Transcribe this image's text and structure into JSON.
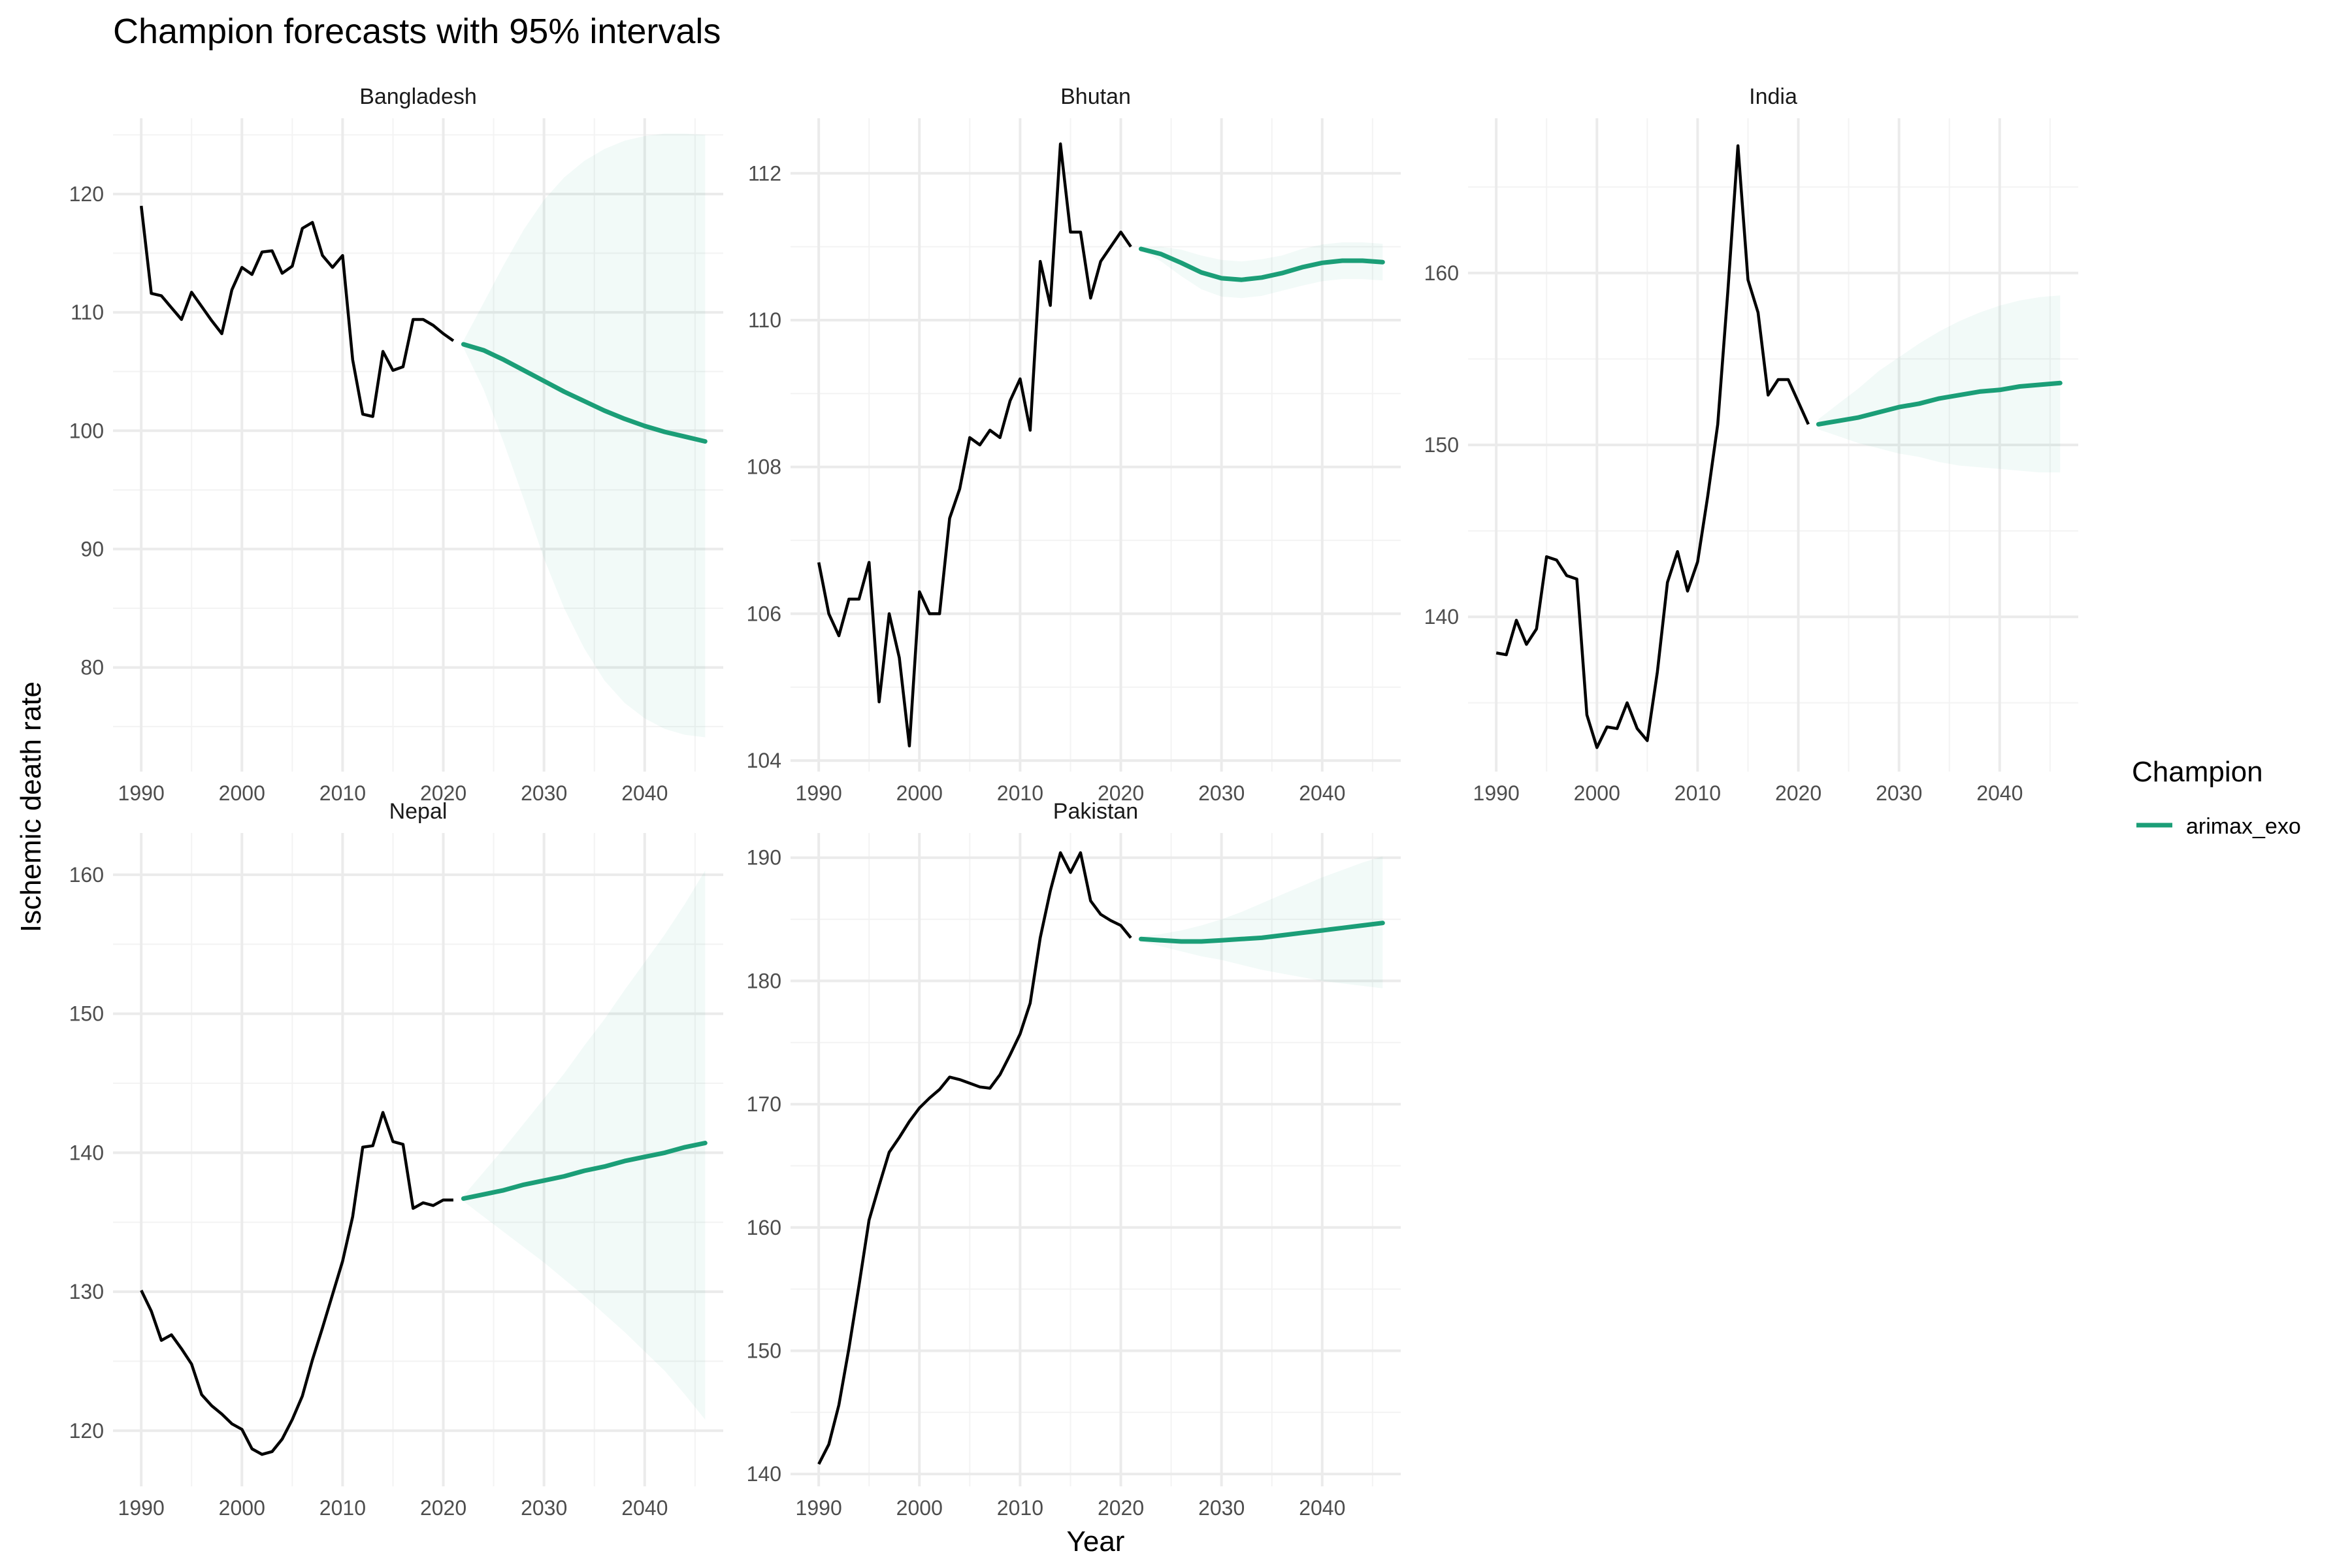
{
  "title": "Champion forecasts with 95% intervals",
  "xlabel": "Year",
  "ylabel": "Ischemic death rate",
  "legend": {
    "title": "Champion",
    "placement": "right",
    "items": [
      {
        "label": "arimax_exo",
        "color": "#1b9e77"
      }
    ]
  },
  "colors": {
    "history": "#000000",
    "forecast": "#1b9e77",
    "ribbon": "#1b9e77",
    "grid_major": "#ebebeb",
    "grid_minor": "#f3f3f3",
    "text": "#4d4d4d"
  },
  "chart_data": [
    {
      "type": "line",
      "panel": "Bangladesh",
      "grid": true,
      "xlim": [
        1987.2,
        2047.8
      ],
      "ylim": [
        71.2,
        126.4
      ],
      "x_ticks": [
        1990,
        2000,
        2010,
        2020,
        2030,
        2040
      ],
      "x_tick_labels_shown": true,
      "y_ticks": [
        80,
        90,
        100,
        110,
        120
      ],
      "history": {
        "x": [
          1990,
          1991,
          1992,
          1993,
          1994,
          1995,
          1996,
          1997,
          1998,
          1999,
          2000,
          2001,
          2002,
          2003,
          2004,
          2005,
          2006,
          2007,
          2008,
          2009,
          2010,
          2011,
          2012,
          2013,
          2014,
          2015,
          2016,
          2017,
          2018,
          2019,
          2020,
          2021
        ],
        "y": [
          119.0,
          111.6,
          111.4,
          110.4,
          109.4,
          111.7,
          110.5,
          109.3,
          108.2,
          111.9,
          113.8,
          113.2,
          115.1,
          115.2,
          113.3,
          113.9,
          117.1,
          117.6,
          114.8,
          113.8,
          114.8,
          106.0,
          101.4,
          101.2,
          106.7,
          105.1,
          105.4,
          109.4,
          109.4,
          108.9,
          108.2,
          107.6
        ]
      },
      "forecast": {
        "x": [
          2022,
          2024,
          2026,
          2028,
          2030,
          2032,
          2034,
          2036,
          2038,
          2040,
          2042,
          2044,
          2046
        ],
        "y": [
          107.3,
          106.8,
          106.0,
          105.1,
          104.2,
          103.3,
          102.5,
          101.7,
          101.0,
          100.4,
          99.9,
          99.5,
          99.1
        ],
        "lower": [
          107.0,
          103.5,
          99.0,
          94.2,
          89.2,
          85.0,
          81.6,
          78.9,
          77.0,
          75.7,
          74.8,
          74.3,
          74.1
        ],
        "upper": [
          107.6,
          110.8,
          114.0,
          117.0,
          119.5,
          121.4,
          122.8,
          123.8,
          124.5,
          124.9,
          125.1,
          125.1,
          125.0
        ]
      }
    },
    {
      "type": "line",
      "panel": "Bhutan",
      "grid": true,
      "xlim": [
        1987.2,
        2047.8
      ],
      "ylim": [
        103.85,
        112.75
      ],
      "x_ticks": [
        1990,
        2000,
        2010,
        2020,
        2030,
        2040
      ],
      "x_tick_labels_shown": true,
      "y_ticks": [
        104,
        106,
        108,
        110,
        112
      ],
      "history": {
        "x": [
          1990,
          1991,
          1992,
          1993,
          1994,
          1995,
          1996,
          1997,
          1998,
          1999,
          2000,
          2001,
          2002,
          2003,
          2004,
          2005,
          2006,
          2007,
          2008,
          2009,
          2010,
          2011,
          2012,
          2013,
          2014,
          2015,
          2016,
          2017,
          2018,
          2019,
          2020,
          2021
        ],
        "y": [
          106.7,
          106.0,
          105.7,
          106.2,
          106.2,
          106.7,
          104.8,
          106.0,
          105.4,
          104.2,
          106.3,
          106.0,
          106.0,
          107.3,
          107.7,
          108.4,
          108.3,
          108.5,
          108.4,
          108.9,
          109.2,
          108.5,
          110.8,
          110.2,
          112.4,
          111.2,
          111.2,
          110.3,
          110.8,
          111.0,
          111.2,
          111.0
        ]
      },
      "forecast": {
        "x": [
          2022,
          2024,
          2026,
          2028,
          2030,
          2032,
          2034,
          2036,
          2038,
          2040,
          2042,
          2044,
          2046
        ],
        "y": [
          110.97,
          110.9,
          110.78,
          110.65,
          110.57,
          110.55,
          110.58,
          110.64,
          110.72,
          110.78,
          110.81,
          110.81,
          110.79
        ],
        "lower": [
          110.95,
          110.8,
          110.6,
          110.42,
          110.32,
          110.3,
          110.33,
          110.4,
          110.47,
          110.53,
          110.56,
          110.56,
          110.54
        ],
        "upper": [
          110.99,
          111.0,
          110.96,
          110.88,
          110.82,
          110.8,
          110.83,
          110.88,
          110.97,
          111.03,
          111.06,
          111.06,
          111.04
        ]
      }
    },
    {
      "type": "line",
      "panel": "India",
      "grid": true,
      "xlim": [
        1987.2,
        2047.8
      ],
      "ylim": [
        131.0,
        169.0
      ],
      "x_ticks": [
        1990,
        2000,
        2010,
        2020,
        2030,
        2040
      ],
      "x_tick_labels_shown": true,
      "y_ticks": [
        140,
        150,
        160
      ],
      "history": {
        "x": [
          1990,
          1991,
          1992,
          1993,
          1994,
          1995,
          1996,
          1997,
          1998,
          1999,
          2000,
          2001,
          2002,
          2003,
          2004,
          2005,
          2006,
          2007,
          2008,
          2009,
          2010,
          2011,
          2012,
          2013,
          2014,
          2015,
          2016,
          2017,
          2018,
          2019,
          2020,
          2021
        ],
        "y": [
          137.9,
          137.8,
          139.8,
          138.4,
          139.3,
          143.5,
          143.3,
          142.4,
          142.2,
          134.3,
          132.4,
          133.6,
          133.5,
          135.0,
          133.5,
          132.8,
          136.8,
          142.0,
          143.8,
          141.5,
          143.2,
          147.0,
          151.2,
          158.9,
          167.4,
          159.6,
          157.7,
          152.9,
          153.8,
          153.8,
          152.5,
          151.2
        ]
      },
      "forecast": {
        "x": [
          2022,
          2024,
          2026,
          2028,
          2030,
          2032,
          2034,
          2036,
          2038,
          2040,
          2042,
          2044,
          2046
        ],
        "y": [
          151.2,
          151.4,
          151.6,
          151.9,
          152.2,
          152.4,
          152.7,
          152.9,
          153.1,
          153.2,
          153.4,
          153.5,
          153.6
        ],
        "lower": [
          150.9,
          150.5,
          150.1,
          149.8,
          149.5,
          149.3,
          149.0,
          148.8,
          148.7,
          148.6,
          148.5,
          148.4,
          148.4
        ],
        "upper": [
          151.5,
          152.4,
          153.3,
          154.3,
          155.1,
          155.9,
          156.6,
          157.2,
          157.7,
          158.1,
          158.4,
          158.6,
          158.7
        ]
      }
    },
    {
      "type": "line",
      "panel": "Nepal",
      "grid": true,
      "xlim": [
        1987.2,
        2047.8
      ],
      "ylim": [
        116.0,
        163.0
      ],
      "x_ticks": [
        1990,
        2000,
        2010,
        2020,
        2030,
        2040
      ],
      "x_tick_labels_shown": true,
      "y_ticks": [
        120,
        130,
        140,
        150,
        160
      ],
      "history": {
        "x": [
          1990,
          1991,
          1992,
          1993,
          1994,
          1995,
          1996,
          1997,
          1998,
          1999,
          2000,
          2001,
          2002,
          2003,
          2004,
          2005,
          2006,
          2007,
          2008,
          2009,
          2010,
          2011,
          2012,
          2013,
          2014,
          2015,
          2016,
          2017,
          2018,
          2019,
          2020,
          2021
        ],
        "y": [
          130.1,
          128.6,
          126.5,
          126.9,
          125.9,
          124.8,
          122.6,
          121.8,
          121.2,
          120.5,
          120.1,
          118.7,
          118.3,
          118.5,
          119.4,
          120.8,
          122.5,
          125.1,
          127.4,
          129.8,
          132.2,
          135.4,
          140.4,
          140.5,
          142.9,
          140.8,
          140.6,
          136.0,
          136.4,
          136.2,
          136.6,
          136.6
        ]
      },
      "forecast": {
        "x": [
          2022,
          2024,
          2026,
          2028,
          2030,
          2032,
          2034,
          2036,
          2038,
          2040,
          2042,
          2044,
          2046
        ],
        "y": [
          136.7,
          137.0,
          137.3,
          137.7,
          138.0,
          138.3,
          138.7,
          139.0,
          139.4,
          139.7,
          140.0,
          140.4,
          140.7
        ],
        "lower": [
          136.5,
          135.4,
          134.3,
          133.2,
          132.1,
          130.9,
          129.7,
          128.4,
          127.1,
          125.7,
          124.3,
          122.6,
          120.8
        ],
        "upper": [
          136.9,
          138.6,
          140.3,
          142.1,
          143.9,
          145.7,
          147.7,
          149.6,
          151.7,
          153.7,
          155.7,
          157.9,
          160.3
        ]
      }
    },
    {
      "type": "line",
      "panel": "Pakistan",
      "grid": true,
      "xlim": [
        1987.2,
        2047.8
      ],
      "ylim": [
        139.0,
        192.0
      ],
      "x_ticks": [
        1990,
        2000,
        2010,
        2020,
        2030,
        2040
      ],
      "x_tick_labels_shown": true,
      "y_ticks": [
        140,
        150,
        160,
        170,
        180,
        190
      ],
      "history": {
        "x": [
          1990,
          1991,
          1992,
          1993,
          1994,
          1995,
          1996,
          1997,
          1998,
          1999,
          2000,
          2001,
          2002,
          2003,
          2004,
          2005,
          2006,
          2007,
          2008,
          2009,
          2010,
          2011,
          2012,
          2013,
          2014,
          2015,
          2016,
          2017,
          2018,
          2019,
          2020,
          2021
        ],
        "y": [
          140.8,
          142.4,
          145.6,
          150.2,
          155.3,
          160.6,
          163.4,
          166.1,
          167.3,
          168.6,
          169.7,
          170.5,
          171.2,
          172.2,
          172.0,
          171.7,
          171.4,
          171.3,
          172.4,
          174.0,
          175.7,
          178.2,
          183.5,
          187.3,
          190.4,
          188.8,
          190.4,
          186.5,
          185.4,
          184.9,
          184.5,
          183.5
        ]
      },
      "forecast": {
        "x": [
          2022,
          2024,
          2026,
          2028,
          2030,
          2032,
          2034,
          2036,
          2038,
          2040,
          2042,
          2044,
          2046
        ],
        "y": [
          183.4,
          183.3,
          183.2,
          183.2,
          183.3,
          183.4,
          183.5,
          183.7,
          183.9,
          184.1,
          184.3,
          184.5,
          184.7
        ],
        "lower": [
          183.2,
          182.8,
          182.4,
          182.0,
          181.7,
          181.3,
          180.9,
          180.6,
          180.3,
          180.0,
          179.8,
          179.6,
          179.4
        ],
        "upper": [
          183.6,
          183.8,
          184.1,
          184.5,
          185.0,
          185.6,
          186.3,
          187.0,
          187.7,
          188.4,
          189.0,
          189.6,
          190.1
        ]
      }
    }
  ]
}
